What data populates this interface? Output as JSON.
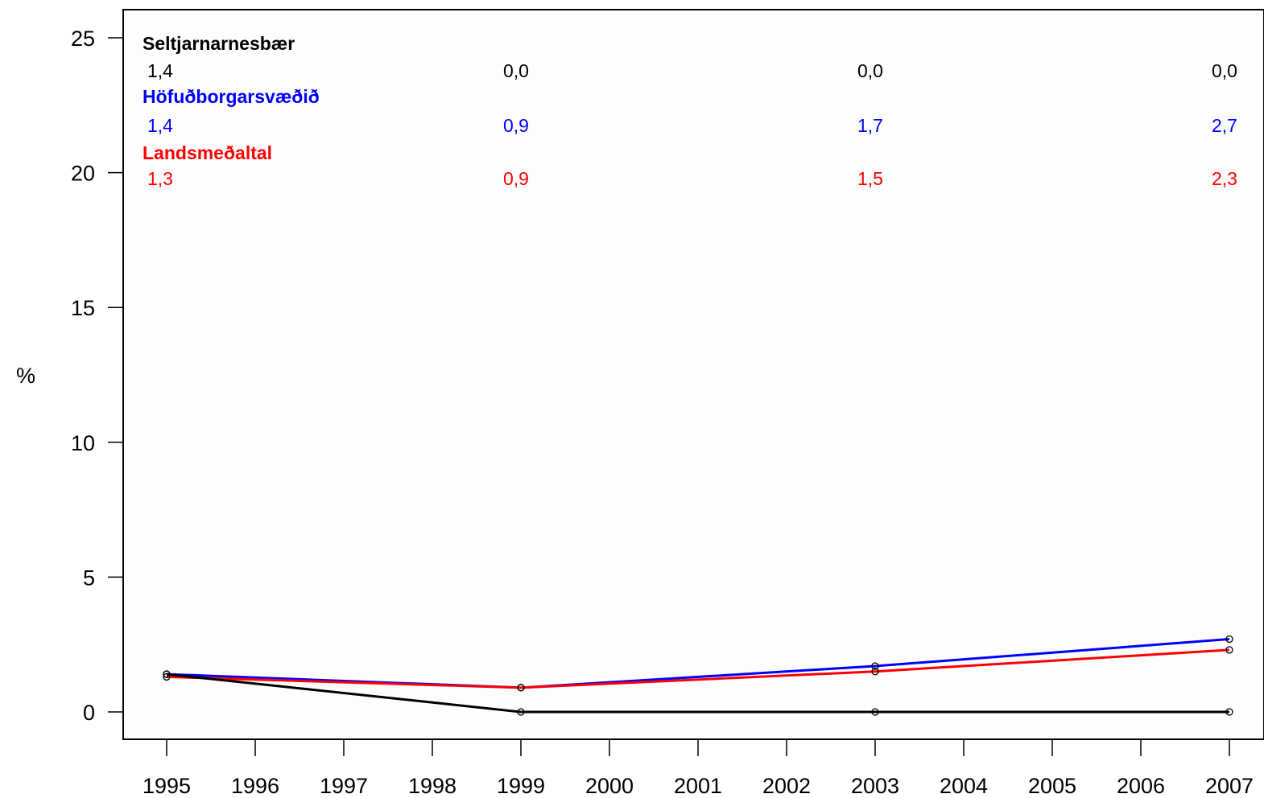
{
  "chart_data": {
    "type": "line",
    "title": "",
    "xlabel": "",
    "ylabel": "%",
    "ylim": [
      0,
      25
    ],
    "y_ticks": [
      "0",
      "5",
      "10",
      "15",
      "20",
      "25"
    ],
    "x_ticks": [
      "1995",
      "1996",
      "1997",
      "1998",
      "1999",
      "2000",
      "2001",
      "2002",
      "2003",
      "2004",
      "2005",
      "2006",
      "2007"
    ],
    "x": [
      1995,
      1999,
      2003,
      2007
    ],
    "series": [
      {
        "name": "Seltjarnarnesbær",
        "color": "#000000",
        "values": [
          1.4,
          0.0,
          0.0,
          0.0
        ],
        "labels": [
          "1,4",
          "0,0",
          "0,0",
          "0,0"
        ]
      },
      {
        "name": "Höfuðborgarsvæðið",
        "color": "#0000ff",
        "values": [
          1.4,
          0.9,
          1.7,
          2.7
        ],
        "labels": [
          "1,4",
          "0,9",
          "1,7",
          "2,7"
        ]
      },
      {
        "name": "Landsmeðaltal",
        "color": "#ff0000",
        "values": [
          1.3,
          0.9,
          1.5,
          2.3
        ],
        "labels": [
          "1,3",
          "0,9",
          "1,5",
          "2,3"
        ]
      }
    ],
    "grid": false,
    "legend": "top-left"
  }
}
